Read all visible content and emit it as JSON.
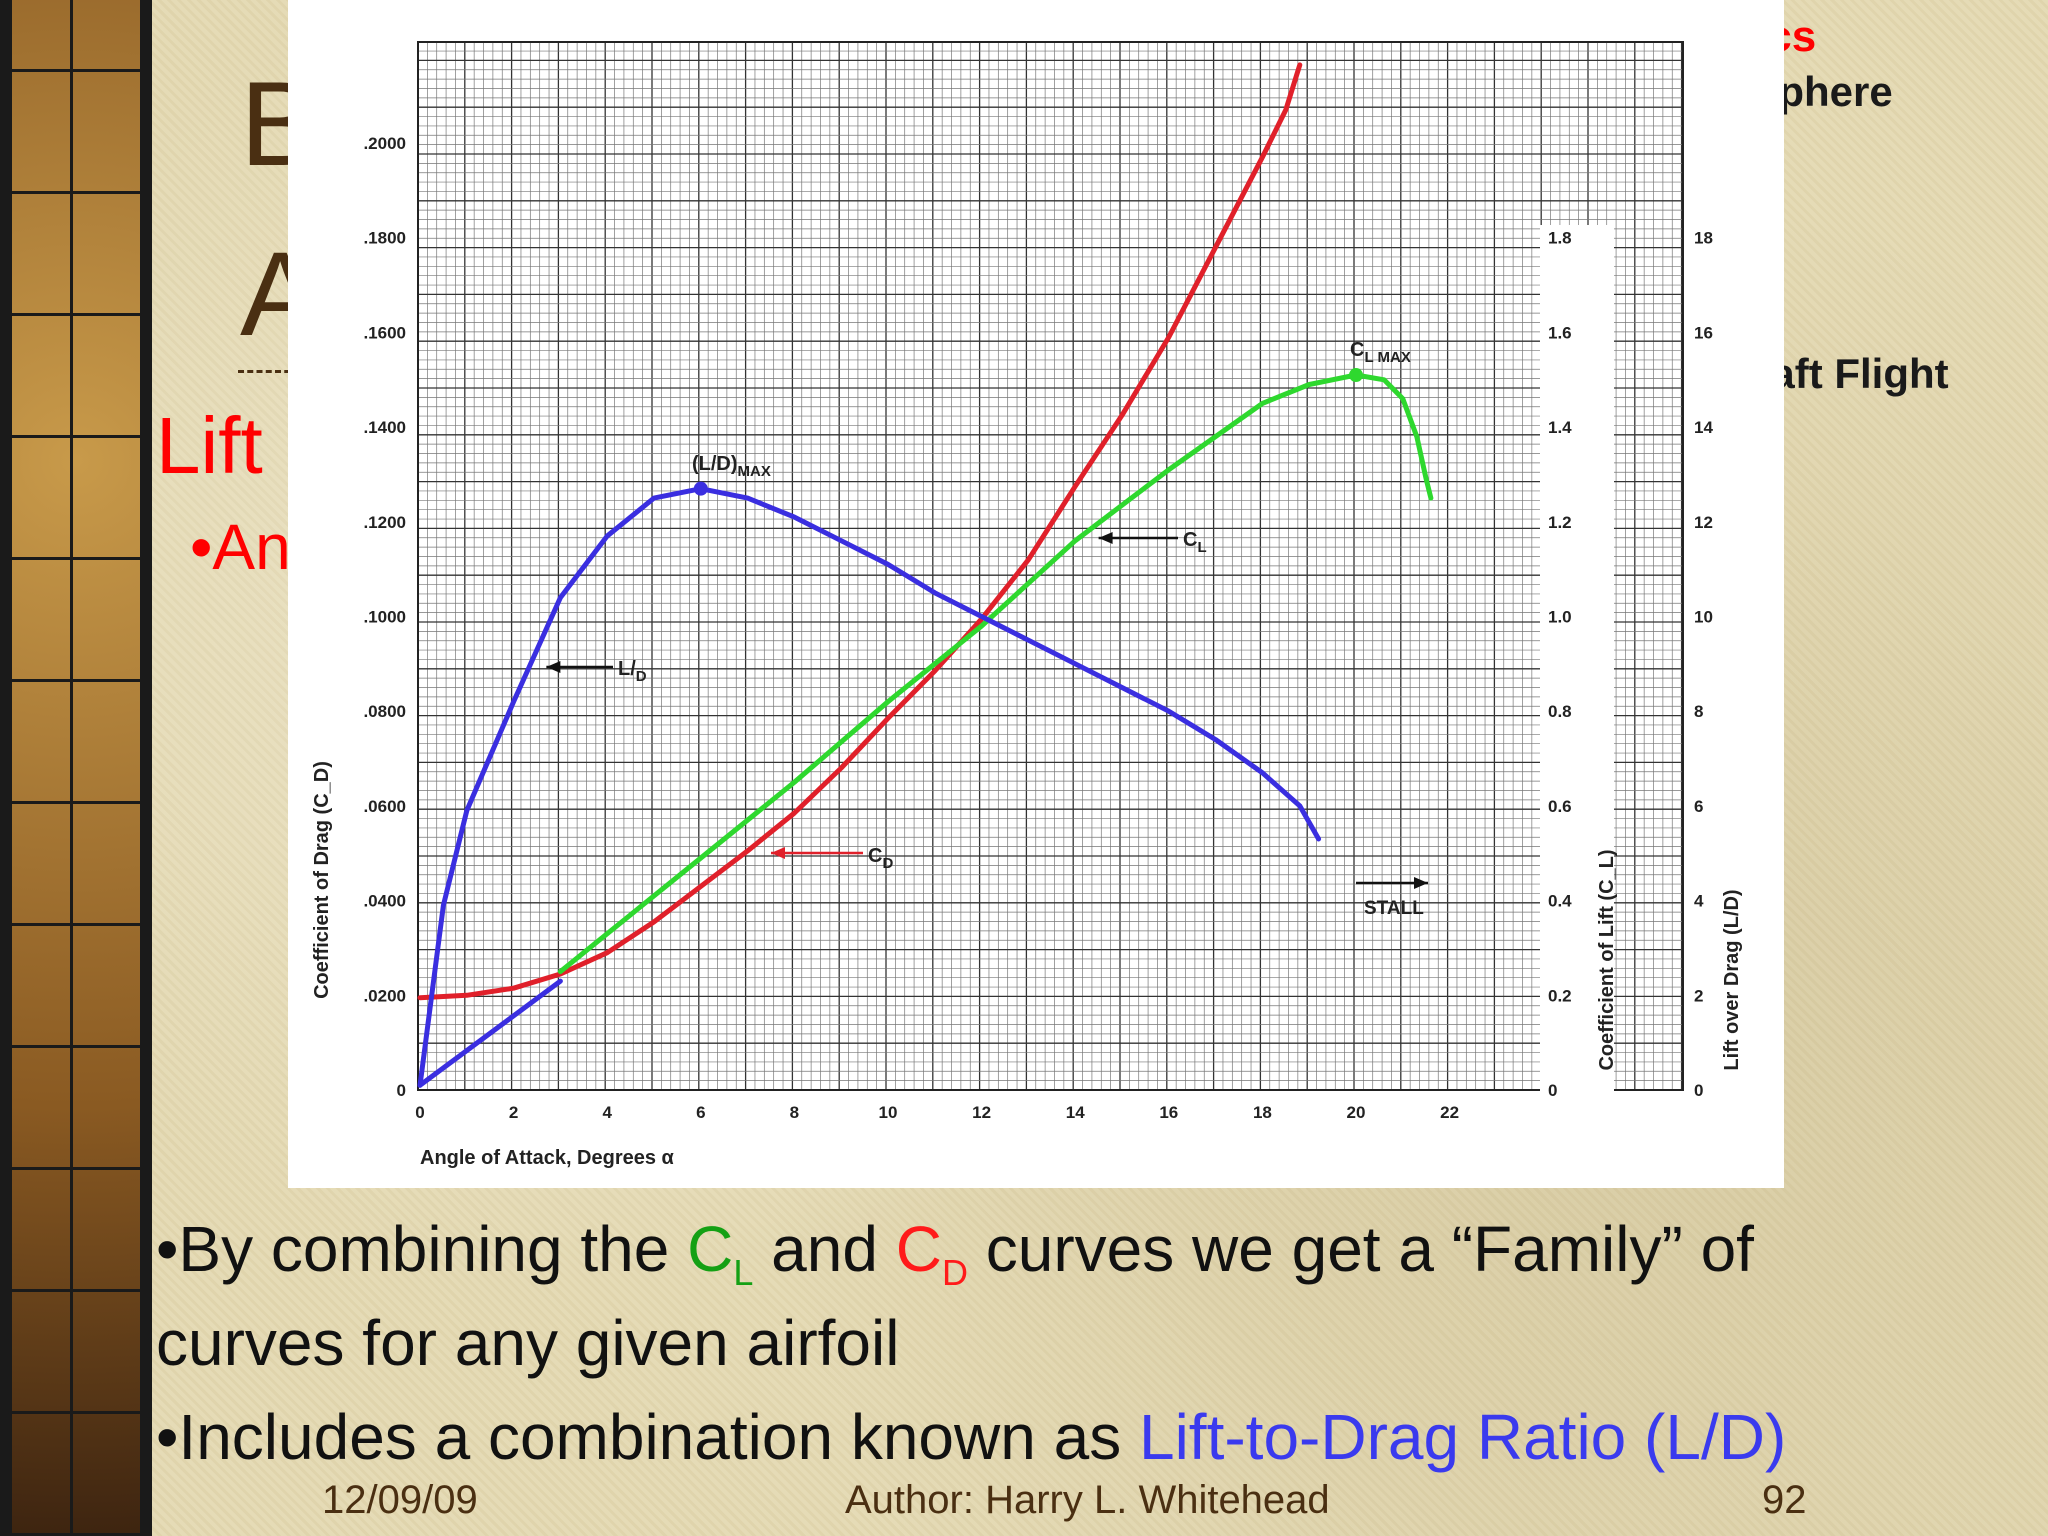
{
  "slide": {
    "title_line1": "B",
    "title_line2": "A",
    "section_head": "Lift",
    "section_bullet": "•An",
    "header_red": "ics",
    "header_dark": "sphere",
    "header_red2": "",
    "header_flight": "raft Flight"
  },
  "bullets": {
    "b1_pre": "•By combining the ",
    "b1_cl": "C",
    "b1_cl_sub": "L",
    "b1_mid": " and ",
    "b1_cd": "C",
    "b1_cd_sub": "D",
    "b1_post": " curves we get a “Family” of",
    "b1_line2": "curves for any given airfoil",
    "b2_pre": "•Includes a combination known as ",
    "b2_blue": "Lift-to-Drag Ratio (L/D)"
  },
  "footer": {
    "date": "12/09/09",
    "author": "Author:  Harry L. Whitehead",
    "page": "92"
  },
  "chart_data": {
    "type": "line",
    "xlabel": "Angle of Attack, Degrees α",
    "ylabel_left": "Coefficient of Drag (C_D)",
    "ylabel_cl": "Coefficient of Lift (C_L)",
    "ylabel_ld": "Lift over Drag (L/D)",
    "xlim": [
      0,
      22
    ],
    "x_ticks": [
      "0",
      "2",
      "4",
      "6",
      "8",
      "10",
      "12",
      "14",
      "16",
      "18",
      "20",
      "22"
    ],
    "cd_ticks": [
      "0",
      ".0200",
      ".0400",
      ".0600",
      ".0800",
      ".1000",
      ".1200",
      ".1400",
      ".1600",
      ".1800",
      ".2000"
    ],
    "cl_ticks": [
      "0",
      "0.2",
      "0.4",
      "0.6",
      "0.8",
      "1.0",
      "1.2",
      "1.4",
      "1.6",
      "1.8"
    ],
    "ld_ticks": [
      "0",
      "2",
      "4",
      "6",
      "8",
      "10",
      "12",
      "14",
      "16",
      "18"
    ],
    "grid": true,
    "colors": {
      "cd": "#e0202a",
      "cl": "#2ed82e",
      "ld": "#3a2ee0"
    },
    "series": [
      {
        "name": "C_D",
        "axis": "cd",
        "points": [
          [
            0,
            0.0195
          ],
          [
            1,
            0.02
          ],
          [
            2,
            0.0215
          ],
          [
            3,
            0.0245
          ],
          [
            4,
            0.029
          ],
          [
            5,
            0.0355
          ],
          [
            6,
            0.043
          ],
          [
            7,
            0.0505
          ],
          [
            8,
            0.0585
          ],
          [
            9,
            0.068
          ],
          [
            10,
            0.0785
          ],
          [
            11,
            0.0885
          ],
          [
            12,
            0.0995
          ],
          [
            13,
            0.112
          ],
          [
            14,
            0.1275
          ],
          [
            15,
            0.1425
          ],
          [
            16,
            0.159
          ],
          [
            17,
            0.178
          ],
          [
            18,
            0.197
          ],
          [
            18.5,
            0.207
          ],
          [
            18.8,
            0.2165
          ]
        ]
      },
      {
        "name": "C_L",
        "axis": "cl",
        "points": [
          [
            3,
            0.25
          ],
          [
            4,
            0.33
          ],
          [
            6,
            0.49
          ],
          [
            8,
            0.65
          ],
          [
            10,
            0.82
          ],
          [
            12,
            0.98
          ],
          [
            14,
            1.16
          ],
          [
            16,
            1.31
          ],
          [
            18,
            1.45
          ],
          [
            19,
            1.49
          ],
          [
            20,
            1.51
          ],
          [
            20.6,
            1.5
          ],
          [
            21,
            1.46
          ],
          [
            21.3,
            1.38
          ],
          [
            21.5,
            1.29
          ],
          [
            21.6,
            1.25
          ]
        ]
      },
      {
        "name": "L/D",
        "axis": "ld",
        "points": [
          [
            0,
            0.1
          ],
          [
            0.5,
            3.9
          ],
          [
            1,
            5.9
          ],
          [
            2,
            8.2
          ],
          [
            3,
            10.4
          ],
          [
            4,
            11.7
          ],
          [
            5,
            12.5
          ],
          [
            6,
            12.7
          ],
          [
            7,
            12.5
          ],
          [
            8,
            12.1
          ],
          [
            9,
            11.6
          ],
          [
            10,
            11.1
          ],
          [
            11,
            10.5
          ],
          [
            12,
            10.0
          ],
          [
            13,
            9.5
          ],
          [
            14,
            9.0
          ],
          [
            15,
            8.5
          ],
          [
            16,
            8.0
          ],
          [
            17,
            7.4
          ],
          [
            18,
            6.7
          ],
          [
            18.8,
            6.0
          ],
          [
            19.2,
            5.3
          ]
        ]
      },
      {
        "name": "line",
        "axis": "ld",
        "points": [
          [
            0,
            0.1
          ],
          [
            3,
            2.3
          ]
        ]
      }
    ],
    "annotations": [
      {
        "text": "(L/D)",
        "sub": "MAX",
        "x": 6,
        "axis": "ld",
        "y": 12.7
      },
      {
        "text": "C",
        "sub": "L MAX",
        "x": 20,
        "axis": "cl",
        "y": 1.51
      },
      {
        "text": "C",
        "sub": "L",
        "arrow_to": [
          14.5,
          1.18
        ]
      },
      {
        "text": "L/",
        "sub": "D",
        "arrow_to": [
          2.7,
          9.1
        ]
      },
      {
        "text": "C",
        "sub": "D",
        "arrow_to": [
          7.5,
          0.0505
        ]
      },
      {
        "text": "STALL"
      }
    ]
  }
}
